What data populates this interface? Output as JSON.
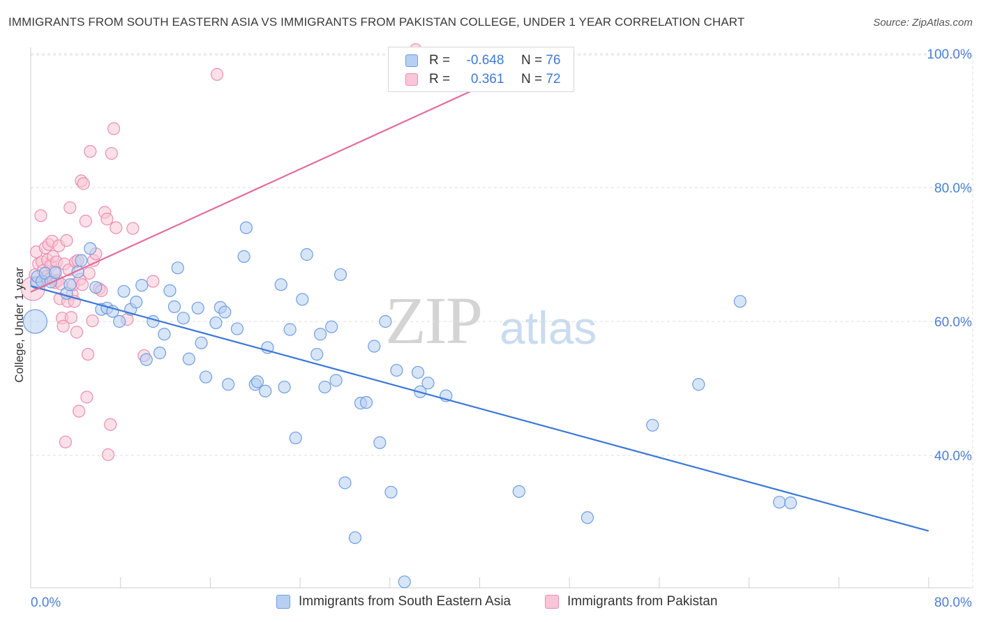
{
  "header": {
    "title": "IMMIGRANTS FROM SOUTH EASTERN ASIA VS IMMIGRANTS FROM PAKISTAN COLLEGE, UNDER 1 YEAR CORRELATION CHART",
    "source": "Source: ZipAtlas.com"
  },
  "watermark": {
    "main": "ZIP",
    "sub": "atlas"
  },
  "colors": {
    "blue": "#3b78d6",
    "blue_fill": "#b7cff3",
    "blue_stroke": "#6e9de0",
    "pink": "#e36d97",
    "pink_fill": "#f8c6d6",
    "pink_stroke": "#ea8eae",
    "grid": "#dddddd",
    "tick_label": "#4a7fd0"
  },
  "stats": {
    "blue": {
      "r_label": "R =",
      "r_value": "-0.648",
      "n_label": "N =",
      "n_value": "76"
    },
    "pink": {
      "r_label": "R =",
      "r_value": "0.361",
      "n_label": "N =",
      "n_value": "72"
    }
  },
  "legend": {
    "blue": "Immigrants from South Eastern Asia",
    "pink": "Immigrants from Pakistan"
  },
  "chart_data": {
    "type": "scatter",
    "title": "IMMIGRANTS FROM SOUTH EASTERN ASIA VS IMMIGRANTS FROM PAKISTAN COLLEGE, UNDER 1 YEAR CORRELATION CHART",
    "xlabel": "",
    "ylabel": "College, Under 1 year",
    "xlim": [
      0,
      80
    ],
    "ylim": [
      20,
      102
    ],
    "x_tick_labels": [
      "0.0%",
      "80.0%"
    ],
    "y_ticks": [
      40,
      60,
      80,
      100
    ],
    "y_tick_labels": [
      "40.0%",
      "60.0%",
      "80.0%",
      "100.0%"
    ],
    "grid": true,
    "legend_position": "bottom",
    "series": [
      {
        "name": "Immigrants from South Eastern Asia",
        "color": "#3b78d6",
        "trend": {
          "x": [
            0,
            80
          ],
          "y": [
            65.3,
            28.7
          ]
        },
        "points": [
          [
            0.4,
            60.0
          ],
          [
            0.5,
            65.8
          ],
          [
            0.6,
            66.7
          ],
          [
            1.0,
            66.0
          ],
          [
            1.3,
            67.2
          ],
          [
            1.8,
            65.9
          ],
          [
            2.2,
            67.3
          ],
          [
            3.2,
            64.2
          ],
          [
            3.5,
            65.5
          ],
          [
            4.2,
            67.4
          ],
          [
            4.5,
            69.1
          ],
          [
            5.3,
            70.9
          ],
          [
            5.8,
            65.1
          ],
          [
            6.3,
            61.8
          ],
          [
            6.8,
            62.0
          ],
          [
            7.3,
            61.5
          ],
          [
            7.9,
            60.0
          ],
          [
            8.3,
            64.5
          ],
          [
            8.9,
            61.8
          ],
          [
            9.4,
            62.9
          ],
          [
            9.9,
            65.4
          ],
          [
            10.3,
            54.3
          ],
          [
            10.9,
            60.0
          ],
          [
            11.5,
            55.3
          ],
          [
            11.9,
            58.1
          ],
          [
            12.4,
            64.6
          ],
          [
            12.8,
            62.2
          ],
          [
            13.1,
            68.0
          ],
          [
            13.6,
            60.5
          ],
          [
            14.1,
            54.4
          ],
          [
            14.9,
            62.0
          ],
          [
            15.2,
            56.8
          ],
          [
            15.6,
            51.7
          ],
          [
            16.5,
            59.8
          ],
          [
            16.9,
            62.1
          ],
          [
            17.3,
            61.4
          ],
          [
            17.6,
            50.6
          ],
          [
            18.4,
            58.9
          ],
          [
            19.0,
            69.7
          ],
          [
            19.2,
            74.0
          ],
          [
            20.0,
            50.6
          ],
          [
            20.2,
            51.0
          ],
          [
            20.9,
            49.6
          ],
          [
            21.1,
            56.1
          ],
          [
            22.3,
            65.5
          ],
          [
            22.6,
            50.2
          ],
          [
            23.1,
            58.8
          ],
          [
            23.6,
            42.6
          ],
          [
            24.2,
            63.3
          ],
          [
            24.6,
            70.0
          ],
          [
            25.5,
            55.1
          ],
          [
            25.8,
            58.1
          ],
          [
            26.2,
            50.2
          ],
          [
            26.8,
            59.2
          ],
          [
            27.2,
            51.2
          ],
          [
            27.6,
            67.0
          ],
          [
            28.0,
            35.9
          ],
          [
            28.9,
            27.7
          ],
          [
            29.4,
            47.8
          ],
          [
            29.9,
            47.9
          ],
          [
            30.6,
            56.3
          ],
          [
            31.1,
            41.9
          ],
          [
            31.6,
            60.0
          ],
          [
            32.1,
            34.5
          ],
          [
            32.6,
            52.7
          ],
          [
            33.3,
            21.1
          ],
          [
            34.5,
            52.4
          ],
          [
            34.7,
            49.5
          ],
          [
            35.4,
            50.8
          ],
          [
            37.0,
            48.9
          ],
          [
            43.5,
            34.6
          ],
          [
            49.6,
            30.7
          ],
          [
            55.4,
            44.5
          ],
          [
            59.5,
            50.6
          ],
          [
            63.2,
            63.0
          ],
          [
            66.7,
            33.0
          ],
          [
            67.7,
            32.9
          ]
        ]
      },
      {
        "name": "Immigrants from Pakistan",
        "color": "#e36d97",
        "trend": {
          "x": [
            0,
            40.4
          ],
          "y": [
            64.4,
            95.3
          ]
        },
        "points": [
          [
            0.2,
            64.9
          ],
          [
            0.4,
            67.0
          ],
          [
            0.5,
            70.4
          ],
          [
            0.6,
            65.7
          ],
          [
            0.7,
            68.6
          ],
          [
            0.9,
            75.8
          ],
          [
            1.0,
            68.9
          ],
          [
            1.1,
            67.6
          ],
          [
            1.3,
            71.0
          ],
          [
            1.4,
            66.7
          ],
          [
            1.5,
            69.2
          ],
          [
            1.6,
            71.5
          ],
          [
            1.7,
            66.4
          ],
          [
            1.8,
            68.4
          ],
          [
            1.9,
            72.0
          ],
          [
            2.0,
            69.7
          ],
          [
            2.1,
            67.5
          ],
          [
            2.2,
            65.8
          ],
          [
            2.3,
            68.9
          ],
          [
            2.4,
            66.1
          ],
          [
            2.5,
            71.3
          ],
          [
            2.6,
            63.4
          ],
          [
            2.7,
            65.6
          ],
          [
            2.8,
            60.5
          ],
          [
            2.9,
            59.3
          ],
          [
            3.0,
            68.6
          ],
          [
            3.1,
            42.0
          ],
          [
            3.2,
            72.1
          ],
          [
            3.3,
            63.0
          ],
          [
            3.4,
            67.7
          ],
          [
            3.5,
            77.0
          ],
          [
            3.6,
            60.6
          ],
          [
            3.7,
            64.1
          ],
          [
            3.8,
            65.5
          ],
          [
            3.9,
            63.0
          ],
          [
            4.0,
            68.9
          ],
          [
            4.1,
            58.4
          ],
          [
            4.2,
            69.1
          ],
          [
            4.3,
            46.6
          ],
          [
            4.4,
            66.3
          ],
          [
            4.5,
            81.0
          ],
          [
            4.6,
            65.5
          ],
          [
            4.7,
            80.6
          ],
          [
            4.9,
            75.0
          ],
          [
            5.0,
            48.7
          ],
          [
            5.1,
            55.1
          ],
          [
            5.2,
            67.2
          ],
          [
            5.3,
            85.4
          ],
          [
            5.5,
            60.1
          ],
          [
            5.6,
            69.1
          ],
          [
            5.8,
            70.1
          ],
          [
            6.1,
            64.9
          ],
          [
            6.3,
            64.6
          ],
          [
            6.6,
            76.3
          ],
          [
            6.8,
            75.3
          ],
          [
            6.9,
            40.1
          ],
          [
            7.1,
            44.6
          ],
          [
            7.2,
            85.1
          ],
          [
            7.4,
            88.8
          ],
          [
            7.6,
            74.0
          ],
          [
            8.6,
            60.3
          ],
          [
            9.1,
            73.9
          ],
          [
            10.1,
            54.9
          ],
          [
            10.9,
            66.0
          ],
          [
            16.6,
            96.9
          ],
          [
            34.3,
            100.6
          ]
        ]
      }
    ]
  }
}
